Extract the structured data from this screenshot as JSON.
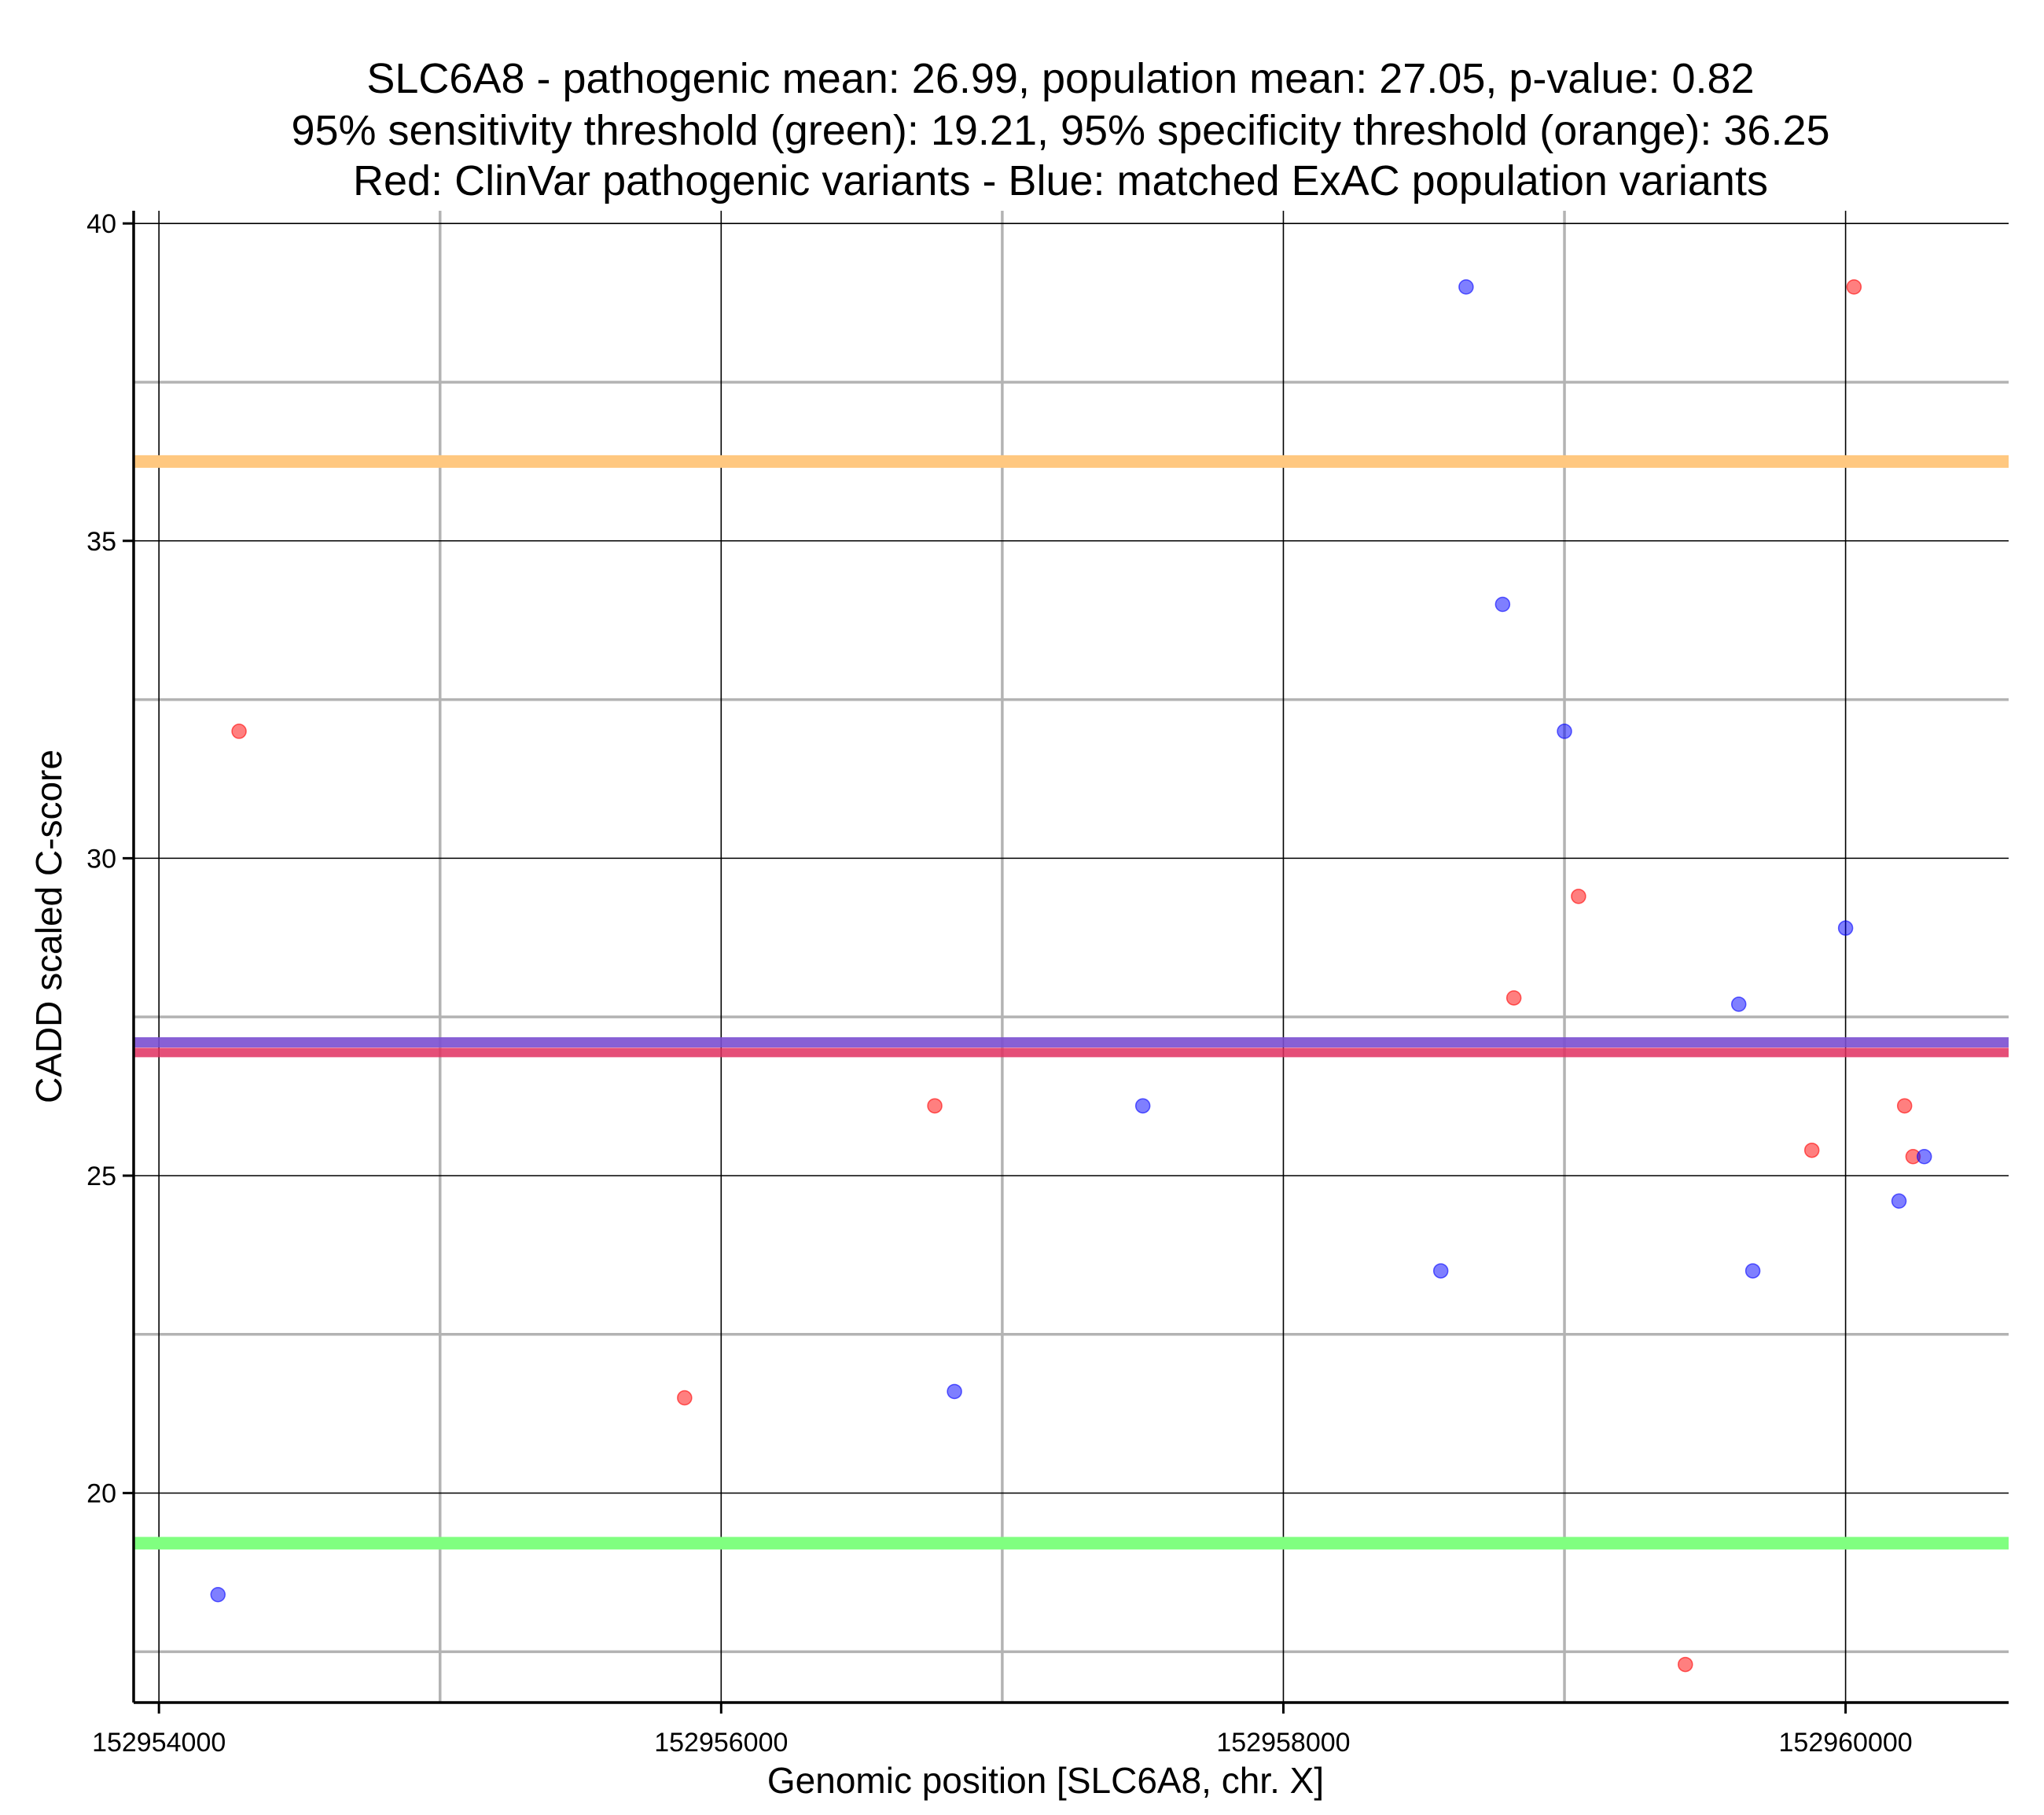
{
  "chart_data": {
    "type": "scatter",
    "title_lines": [
      "SLC6A8 - pathogenic mean: 26.99, population mean: 27.05, p-value: 0.82",
      "95% sensitivity threshold (green): 19.21, 95% specificity threshold (orange): 36.25",
      "Red: ClinVar pathogenic variants - Blue: matched ExAC population variants"
    ],
    "xlabel": "Genomic position [SLC6A8, chr. X]",
    "ylabel": "CADD scaled C-score",
    "xlim": [
      152953910,
      152960580
    ],
    "ylim": [
      16.7,
      40.2
    ],
    "x_major_ticks": [
      152954000,
      152956000,
      152958000,
      152960000
    ],
    "x_tick_labels": [
      "152954000",
      "152956000",
      "152958000",
      "152960000"
    ],
    "x_minor_grid": [
      152955000,
      152957000,
      152959000
    ],
    "y_major_ticks": [
      20,
      25,
      30,
      35,
      40
    ],
    "y_tick_labels": [
      "20",
      "25",
      "30",
      "35",
      "40"
    ],
    "y_minor_grid": [
      17.5,
      22.5,
      27.5,
      32.5,
      37.5
    ],
    "grid": true,
    "colors": {
      "pathogenic": "#ff0000",
      "population": "#0000ff",
      "sensitivity": "#80ff80",
      "specificity": "#ffc880",
      "pathogenic_mean": "#e03060",
      "population_mean": "#7b4fd0",
      "major_grid": "#000000",
      "minor_grid": "#b3b3b3"
    },
    "reference_lines": [
      {
        "name": "sensitivity-threshold",
        "y": 19.21,
        "color_key": "sensitivity"
      },
      {
        "name": "specificity-threshold",
        "y": 36.25,
        "color_key": "specificity"
      },
      {
        "name": "population-mean",
        "y": 27.05,
        "color_key": "population_mean"
      },
      {
        "name": "pathogenic-mean",
        "y": 26.99,
        "color_key": "pathogenic_mean"
      }
    ],
    "series": [
      {
        "name": "ClinVar pathogenic variants",
        "color_key": "pathogenic",
        "x": [
          152954285,
          152955870,
          152956760,
          152958820,
          152959050,
          152959430,
          152959880,
          152960030,
          152960210,
          152960240
        ],
        "y": [
          32.0,
          21.5,
          26.1,
          27.8,
          29.4,
          17.3,
          25.4,
          39.0,
          26.1,
          25.3
        ]
      },
      {
        "name": "matched ExAC population variants",
        "color_key": "population",
        "x": [
          152954210,
          152956830,
          152957500,
          152958560,
          152958650,
          152958780,
          152959000,
          152959620,
          152959670,
          152960000,
          152960190,
          152960280
        ],
        "y": [
          18.4,
          21.6,
          26.1,
          23.5,
          39.0,
          34.0,
          32.0,
          27.7,
          23.5,
          28.9,
          24.6,
          25.3
        ]
      }
    ]
  }
}
